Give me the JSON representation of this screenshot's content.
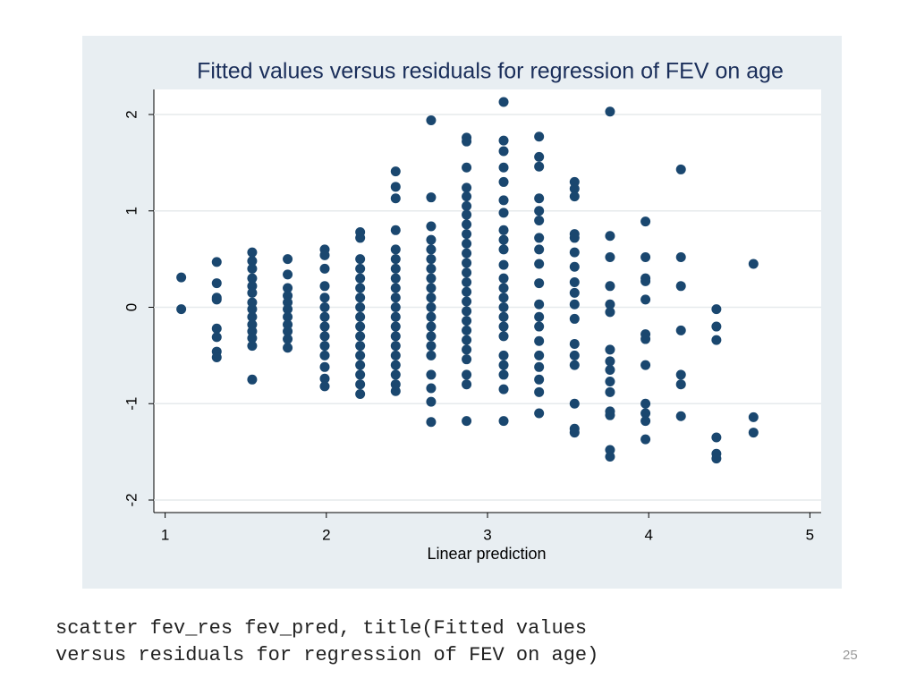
{
  "chart_data": {
    "type": "scatter",
    "title": "Fitted values versus residuals for regression of FEV on age",
    "x_label": "Linear prediction",
    "xlim": [
      0.93,
      5.07
    ],
    "xticks": [
      1,
      2,
      3,
      4,
      5
    ],
    "ylim": [
      -2.13,
      2.26
    ],
    "yticks": [
      -2,
      -1,
      0,
      1,
      2
    ],
    "grid": true,
    "color": "#1a476f",
    "x": [
      1.1,
      1.1,
      1.32,
      1.32,
      1.32,
      1.32,
      1.32,
      1.32,
      1.32,
      1.32,
      1.54,
      1.54,
      1.54,
      1.54,
      1.54,
      1.54,
      1.54,
      1.54,
      1.54,
      1.54,
      1.54,
      1.54,
      1.54,
      1.54,
      1.76,
      1.76,
      1.76,
      1.76,
      1.76,
      1.76,
      1.76,
      1.76,
      1.76,
      1.76,
      1.76,
      1.99,
      1.99,
      1.99,
      1.99,
      1.99,
      1.99,
      1.99,
      1.99,
      1.99,
      1.99,
      1.99,
      1.99,
      1.99,
      1.99,
      2.21,
      2.21,
      2.21,
      2.21,
      2.21,
      2.21,
      2.21,
      2.21,
      2.21,
      2.21,
      2.21,
      2.21,
      2.21,
      2.21,
      2.21,
      2.21,
      2.21,
      2.43,
      2.43,
      2.43,
      2.43,
      2.43,
      2.43,
      2.43,
      2.43,
      2.43,
      2.43,
      2.43,
      2.43,
      2.43,
      2.43,
      2.43,
      2.43,
      2.43,
      2.43,
      2.43,
      2.43,
      2.65,
      2.65,
      2.65,
      2.65,
      2.65,
      2.65,
      2.65,
      2.65,
      2.65,
      2.65,
      2.65,
      2.65,
      2.65,
      2.65,
      2.65,
      2.65,
      2.65,
      2.65,
      2.65,
      2.65,
      2.87,
      2.87,
      2.87,
      2.87,
      2.87,
      2.87,
      2.87,
      2.87,
      2.87,
      2.87,
      2.87,
      2.87,
      2.87,
      2.87,
      2.87,
      2.87,
      2.87,
      2.87,
      2.87,
      2.87,
      2.87,
      2.87,
      2.87,
      2.87,
      2.87,
      3.1,
      3.1,
      3.1,
      3.1,
      3.1,
      3.1,
      3.1,
      3.1,
      3.1,
      3.1,
      3.1,
      3.1,
      3.1,
      3.1,
      3.1,
      3.1,
      3.1,
      3.1,
      3.1,
      3.1,
      3.1,
      3.1,
      3.1,
      3.32,
      3.32,
      3.32,
      3.32,
      3.32,
      3.32,
      3.32,
      3.32,
      3.32,
      3.32,
      3.32,
      3.32,
      3.32,
      3.32,
      3.32,
      3.32,
      3.32,
      3.32,
      3.32,
      3.54,
      3.54,
      3.54,
      3.54,
      3.54,
      3.54,
      3.54,
      3.54,
      3.54,
      3.54,
      3.54,
      3.54,
      3.54,
      3.54,
      3.54,
      3.54,
      3.54,
      3.76,
      3.76,
      3.76,
      3.76,
      3.76,
      3.76,
      3.76,
      3.76,
      3.76,
      3.76,
      3.76,
      3.76,
      3.76,
      3.76,
      3.76,
      3.98,
      3.98,
      3.98,
      3.98,
      3.98,
      3.98,
      3.98,
      3.98,
      3.98,
      3.98,
      3.98,
      3.98,
      4.2,
      4.2,
      4.2,
      4.2,
      4.2,
      4.2,
      4.2,
      4.42,
      4.42,
      4.42,
      4.42,
      4.42,
      4.42,
      4.65,
      4.65,
      4.65
    ],
    "values": [
      0.31,
      -0.02,
      0.47,
      0.25,
      0.1,
      0.08,
      -0.22,
      -0.31,
      -0.46,
      -0.52,
      0.57,
      0.48,
      0.4,
      0.3,
      0.22,
      0.15,
      0.05,
      -0.02,
      -0.1,
      -0.18,
      -0.25,
      -0.32,
      -0.4,
      -0.75,
      0.5,
      0.34,
      0.2,
      0.12,
      0.05,
      -0.02,
      -0.1,
      -0.18,
      -0.25,
      -0.33,
      -0.42,
      0.6,
      0.54,
      0.4,
      0.22,
      0.1,
      0,
      -0.1,
      -0.2,
      -0.3,
      -0.4,
      -0.5,
      -0.62,
      -0.74,
      -0.82,
      0.78,
      0.72,
      0.5,
      0.4,
      0.3,
      0.2,
      0.1,
      0,
      -0.1,
      -0.2,
      -0.3,
      -0.4,
      -0.5,
      -0.6,
      -0.7,
      -0.8,
      -0.9,
      1.41,
      1.25,
      1.13,
      0.8,
      0.6,
      0.5,
      0.4,
      0.3,
      0.2,
      0.1,
      0,
      -0.1,
      -0.2,
      -0.3,
      -0.4,
      -0.5,
      -0.6,
      -0.7,
      -0.8,
      -0.87,
      1.94,
      1.14,
      0.84,
      0.7,
      0.6,
      0.5,
      0.4,
      0.3,
      0.2,
      0.1,
      0,
      -0.1,
      -0.2,
      -0.3,
      -0.4,
      -0.5,
      -0.7,
      -0.84,
      -0.98,
      -1.19,
      1.76,
      1.72,
      1.45,
      1.24,
      1.15,
      1.05,
      0.96,
      0.86,
      0.76,
      0.66,
      0.56,
      0.46,
      0.36,
      0.26,
      0.16,
      0.06,
      -0.04,
      -0.14,
      -0.24,
      -0.34,
      -0.44,
      -0.54,
      -0.7,
      -0.8,
      -1.18,
      2.13,
      1.73,
      1.62,
      1.45,
      1.3,
      1.11,
      0.98,
      0.8,
      0.7,
      0.6,
      0.44,
      0.3,
      0.2,
      0.1,
      0,
      -0.1,
      -0.2,
      -0.3,
      -0.5,
      -0.6,
      -0.7,
      -0.85,
      -1.18,
      1.77,
      1.56,
      1.46,
      1.13,
      1.0,
      0.9,
      0.72,
      0.6,
      0.45,
      0.25,
      0.03,
      -0.1,
      -0.2,
      -0.35,
      -0.5,
      -0.62,
      -0.75,
      -0.88,
      -1.1,
      1.3,
      1.23,
      1.15,
      0.76,
      0.72,
      0.57,
      0.42,
      0.26,
      0.15,
      0.03,
      -0.12,
      -0.38,
      -0.5,
      -0.6,
      -1.0,
      -1.26,
      -1.3,
      2.03,
      0.74,
      0.52,
      0.22,
      0.03,
      -0.05,
      -0.44,
      -0.56,
      -0.65,
      -0.77,
      -0.88,
      -1.08,
      -1.12,
      -1.48,
      -1.55,
      0.89,
      0.52,
      0.3,
      0.27,
      0.08,
      -0.28,
      -0.33,
      -0.6,
      -1.0,
      -1.1,
      -1.18,
      -1.37,
      1.43,
      0.52,
      0.22,
      -0.24,
      -0.7,
      -0.8,
      -1.13,
      -0.02,
      -0.2,
      -0.34,
      -1.35,
      -1.52,
      -1.57,
      0.45,
      -1.14,
      -1.3
    ]
  },
  "caption": [
    "scatter fev_res fev_pred, title(Fitted values",
    "versus residuals for regression of FEV on age)"
  ],
  "page_number": 25
}
